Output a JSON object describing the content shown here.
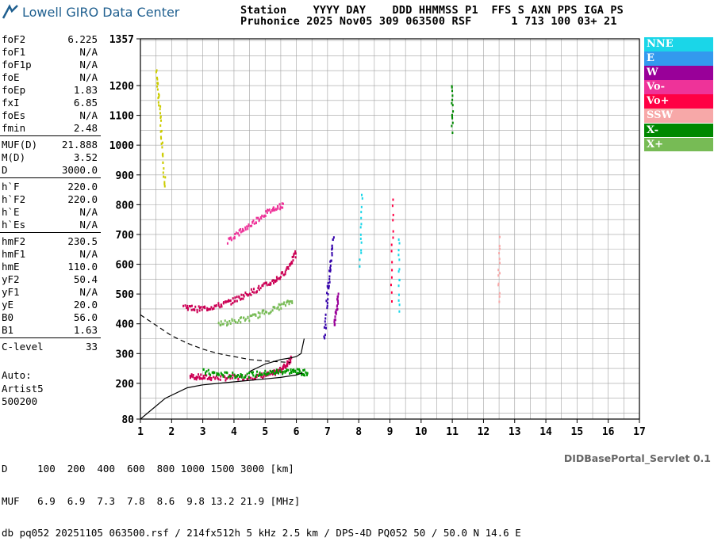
{
  "header": {
    "logo_text": "Lowell GIRO Data Center",
    "line1": "Station    YYYY DAY    DDD HHMMSS P1  FFS S AXN PPS IGA PS",
    "line2": "Pruhonice 2025 Nov05 309 063500 RSF      1 713 100 03+ 21"
  },
  "params_groups": [
    [
      [
        "foF2",
        "6.225"
      ],
      [
        "foF1",
        "N/A"
      ],
      [
        "foF1p",
        "N/A"
      ],
      [
        "foE",
        "N/A"
      ],
      [
        "foEp",
        "1.83"
      ],
      [
        "fxI",
        "6.85"
      ],
      [
        "foEs",
        "N/A"
      ],
      [
        "fmin",
        "2.48"
      ]
    ],
    [
      [
        "MUF(D)",
        "21.888"
      ],
      [
        "M(D)",
        "3.52"
      ],
      [
        "D",
        "3000.0"
      ]
    ],
    [
      [
        "h`F",
        "220.0"
      ],
      [
        "h`F2",
        "220.0"
      ],
      [
        "h`E",
        "N/A"
      ],
      [
        "h`Es",
        "N/A"
      ]
    ],
    [
      [
        "hmF2",
        "230.5"
      ],
      [
        "hmF1",
        "N/A"
      ],
      [
        "hmE",
        "110.0"
      ],
      [
        "yF2",
        "50.4"
      ],
      [
        "yF1",
        "N/A"
      ],
      [
        "yE",
        "20.0"
      ],
      [
        "B0",
        "56.0"
      ],
      [
        "B1",
        "1.63"
      ]
    ],
    [
      [
        "C-level",
        "33"
      ]
    ]
  ],
  "auto": [
    "Auto:",
    "Artist5",
    "500200"
  ],
  "legend": [
    {
      "label": "NNE",
      "color": "#1ad6e8"
    },
    {
      "label": "E",
      "color": "#3399ee"
    },
    {
      "label": "W",
      "color": "#990099"
    },
    {
      "label": "Vo-",
      "color": "#ee3399"
    },
    {
      "label": "Vo+",
      "color": "#ff0044"
    },
    {
      "label": "SSW",
      "color": "#f7a8a8"
    },
    {
      "label": "X-",
      "color": "#008800"
    },
    {
      "label": "X+",
      "color": "#77bb55"
    }
  ],
  "bottom": {
    "line1": "D     100  200  400  600  800 1000 1500 3000 [km]",
    "line2": "MUF   6.9  6.9  7.3  7.8  8.6  9.8 13.2 21.9 [MHz]",
    "line3": "db pq052 20251105 063500.rsf / 214fx512h 5 kHz 2.5 km / DPS-4D PQ052 50 / 50.0 N 14.6 E"
  },
  "servlet": "DIDBasePortal_Servlet 0.1",
  "chart_data": {
    "type": "scatter",
    "xlabel": "",
    "ylabel": "",
    "xlim": [
      1,
      17
    ],
    "ylim": [
      80,
      1357
    ],
    "x_ticks": [
      1,
      2,
      3,
      4,
      5,
      6,
      7,
      8,
      9,
      10,
      11,
      12,
      13,
      14,
      15,
      16,
      17
    ],
    "y_ticks": [
      80,
      200,
      300,
      400,
      500,
      600,
      700,
      800,
      900,
      1000,
      1100,
      1200,
      1357
    ],
    "grid": true,
    "traces": [
      {
        "x": [
          2.6,
          2.9,
          3.3,
          3.8,
          4.3,
          4.8,
          5.2,
          5.5,
          5.7,
          5.85
        ],
        "y": [
          225,
          222,
          220,
          220,
          221,
          225,
          232,
          245,
          265,
          290
        ],
        "color": "#cc0055"
      },
      {
        "x": [
          3.0,
          3.5,
          4.0,
          4.5,
          5.0,
          5.4,
          5.8,
          6.1,
          6.4
        ],
        "y": [
          240,
          232,
          228,
          230,
          235,
          240,
          242,
          240,
          235
        ],
        "color": "#009900"
      },
      {
        "x": [
          2.4,
          2.8,
          3.2,
          3.6,
          4.0,
          4.4,
          4.8,
          5.2,
          5.5,
          5.8,
          6.0
        ],
        "y": [
          460,
          450,
          455,
          465,
          480,
          500,
          520,
          540,
          560,
          600,
          640
        ],
        "color": "#cc0055"
      },
      {
        "x": [
          3.5,
          4.0,
          4.5,
          5.0,
          5.5,
          5.9
        ],
        "y": [
          400,
          410,
          420,
          440,
          460,
          480
        ],
        "color": "#77bb55"
      },
      {
        "x": [
          3.8,
          4.2,
          4.6,
          5.0,
          5.3,
          5.6
        ],
        "y": [
          680,
          710,
          740,
          770,
          790,
          800
        ],
        "color": "#ee3399"
      },
      {
        "x": [
          1.5,
          1.6,
          1.7,
          1.8
        ],
        "y": [
          1250,
          1150,
          1000,
          850
        ],
        "color": "#cccc00"
      },
      {
        "x": [
          6.9,
          7.0,
          7.1,
          7.2
        ],
        "y": [
          350,
          500,
          600,
          700
        ],
        "color": "#3300aa"
      },
      {
        "x": [
          7.2,
          7.3,
          7.35
        ],
        "y": [
          400,
          450,
          500
        ],
        "color": "#990099"
      },
      {
        "x": [
          8.05,
          8.1
        ],
        "y": [
          600,
          850
        ],
        "color": "#1ad6e8"
      },
      {
        "x": [
          9.05,
          9.1
        ],
        "y": [
          480,
          850
        ],
        "color": "#ff0044"
      },
      {
        "x": [
          9.3,
          9.3
        ],
        "y": [
          450,
          700
        ],
        "color": "#1ad6e8"
      },
      {
        "x": [
          11.0,
          11.0
        ],
        "y": [
          1050,
          1220
        ],
        "color": "#008800"
      },
      {
        "x": [
          12.5,
          12.5
        ],
        "y": [
          480,
          700
        ],
        "color": "#f7a8a8"
      }
    ],
    "profile_curve": {
      "x": [
        1.0,
        1.8,
        2.5,
        3.0,
        3.5,
        4.0,
        4.5,
        5.0,
        5.5,
        5.8,
        6.0,
        6.2
      ],
      "y": [
        80,
        150,
        185,
        195,
        200,
        205,
        210,
        215,
        220,
        225,
        228,
        235
      ]
    },
    "trace_curve": {
      "x": [
        4.5,
        5.0,
        5.5,
        5.8,
        6.0,
        6.15,
        6.25
      ],
      "y": [
        240,
        265,
        280,
        285,
        290,
        300,
        350
      ]
    },
    "dashed_curve": {
      "x": [
        1.0,
        1.5,
        2.0,
        2.5,
        3.0,
        3.5,
        4.0,
        4.5,
        5.0,
        5.5,
        5.8
      ],
      "y": [
        430,
        395,
        360,
        335,
        315,
        300,
        290,
        280,
        275,
        272,
        270
      ]
    }
  }
}
